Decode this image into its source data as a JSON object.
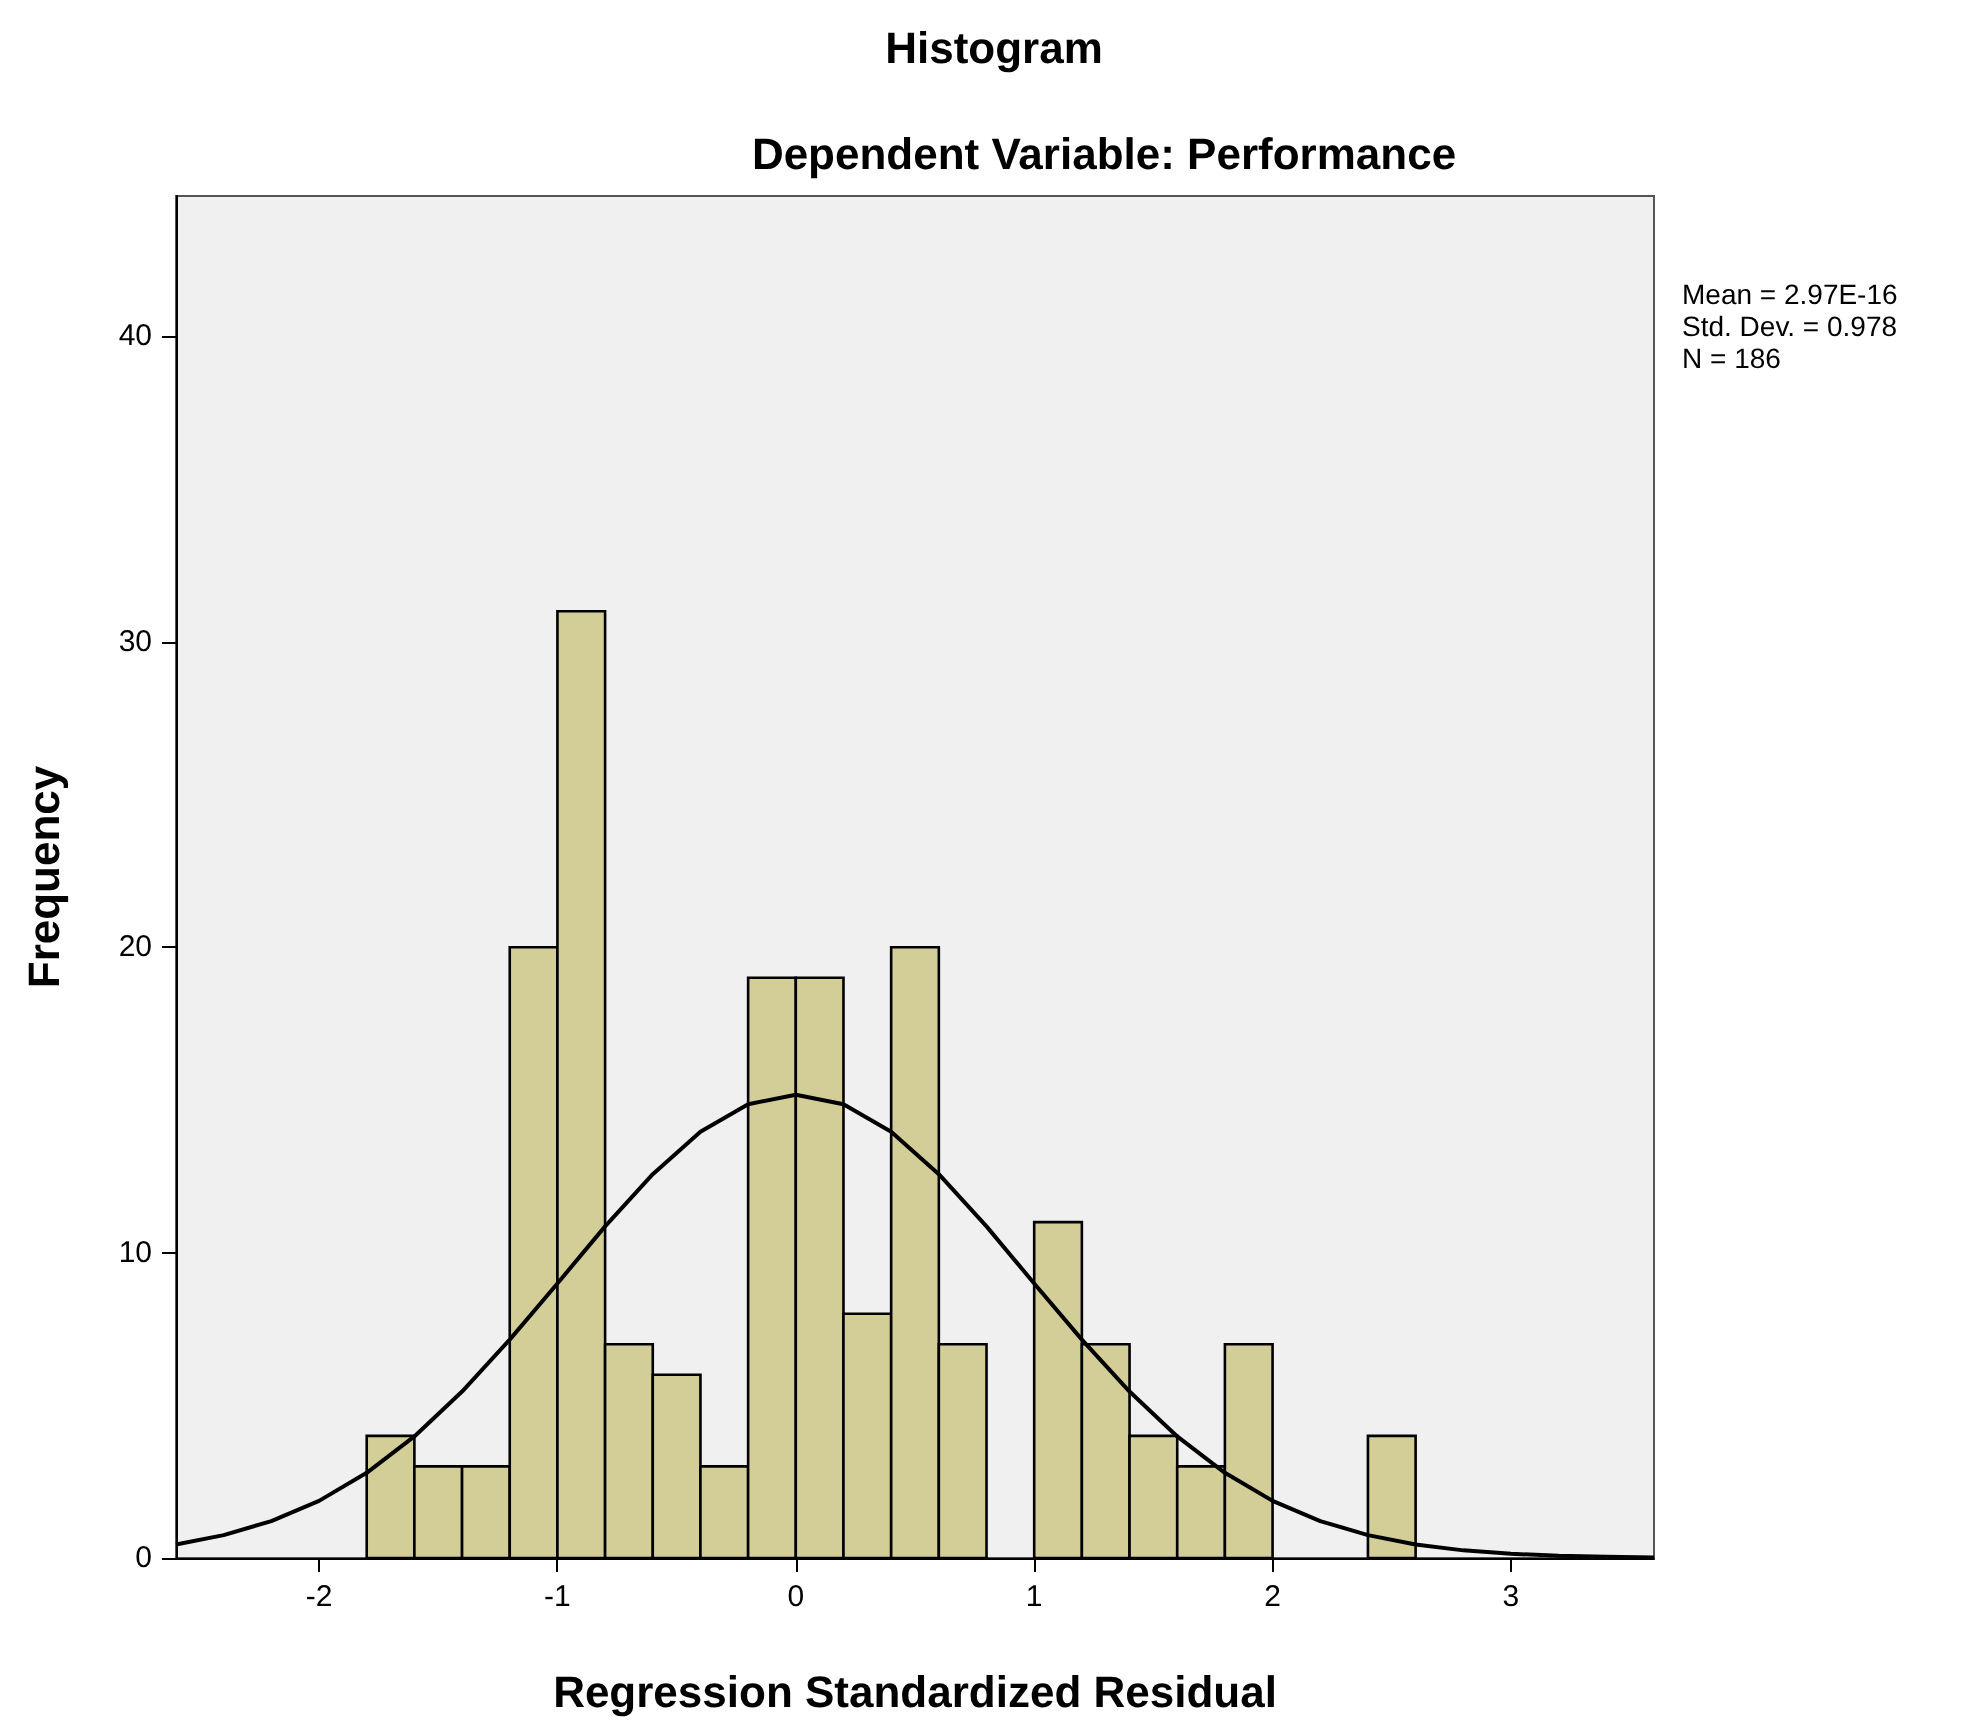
{
  "chart_data": {
    "type": "histogram",
    "title": "Histogram",
    "subtitle": "Dependent Variable: Performance",
    "xlabel": "Regression Standardized Residual",
    "ylabel": "Frequency",
    "annotations": [
      "Mean = 2.97E-16",
      "Std. Dev. = 0.978",
      "N = 186"
    ],
    "xlim": [
      -2.6,
      3.6
    ],
    "ylim": [
      0,
      44.6
    ],
    "xticks": [
      -2,
      -1,
      0,
      1,
      2,
      3
    ],
    "yticks": [
      0,
      10,
      20,
      30,
      40
    ],
    "series": [
      {
        "color": "#d3ce97",
        "bins": [
          -1.8,
          -1.6,
          -1.4,
          -1.2,
          -1.0,
          -0.8,
          -0.6,
          -0.4,
          -0.2,
          0,
          0.2,
          0.4,
          0.6,
          0.8,
          1.0,
          1.2,
          1.4,
          1.6,
          1.8,
          2.0,
          2.2,
          2.4,
          2.6
        ],
        "values": [
          4,
          3,
          3,
          20,
          31,
          7,
          6,
          3,
          19,
          19,
          8,
          20,
          7,
          0,
          11,
          7,
          4,
          3,
          7,
          0,
          0,
          4
        ]
      },
      {
        "type": "line",
        "color": "#000000",
        "marker": "none",
        "x": [
          -2.6,
          -2.4,
          -2.2,
          -2.0,
          -1.8,
          -1.6,
          -1.4,
          -1.2,
          -1.0,
          -0.8,
          -0.6,
          -0.4,
          -0.2,
          0,
          0.2,
          0.4,
          0.6,
          0.8,
          1.0,
          1.2,
          1.4,
          1.6,
          1.8,
          2.0,
          2.2,
          2.4,
          2.6,
          2.8,
          3.0,
          3.2,
          3.4,
          3.6
        ],
        "values": [
          0.44,
          0.75,
          1.21,
          1.87,
          2.79,
          3.98,
          5.45,
          7.15,
          8.99,
          10.86,
          12.57,
          13.96,
          14.86,
          15.17,
          14.86,
          13.96,
          12.57,
          10.86,
          8.99,
          7.15,
          5.45,
          3.98,
          2.79,
          1.87,
          1.21,
          0.75,
          0.44,
          0.25,
          0.14,
          0.07,
          0.04,
          0.02
        ]
      }
    ]
  }
}
